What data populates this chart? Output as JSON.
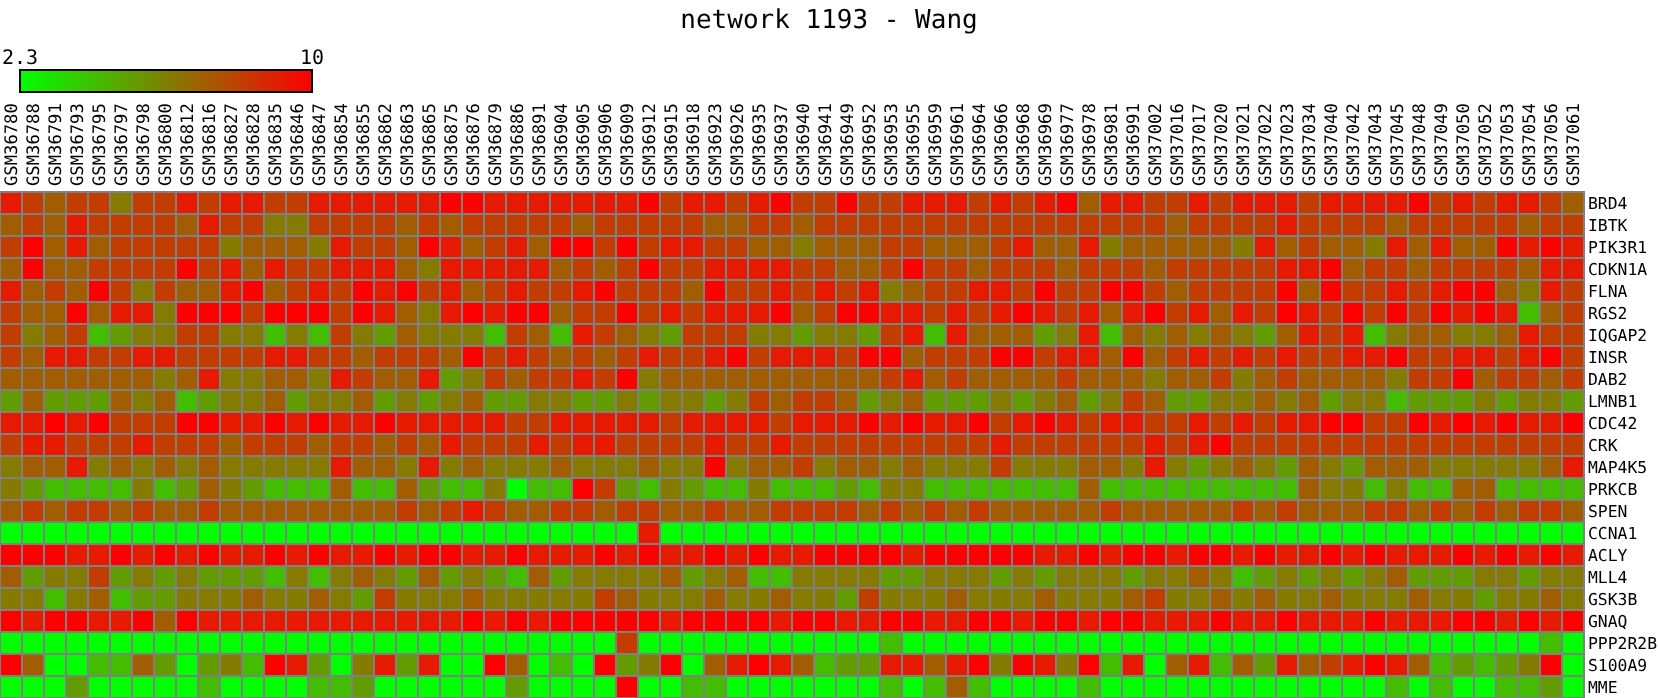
{
  "chart_data": {
    "type": "heatmap",
    "title": "network 1193 - Wang",
    "categories": [
      "GSM36780",
      "GSM36788",
      "GSM36791",
      "GSM36793",
      "GSM36795",
      "GSM36797",
      "GSM36798",
      "GSM36800",
      "GSM36812",
      "GSM36816",
      "GSM36827",
      "GSM36828",
      "GSM36835",
      "GSM36846",
      "GSM36847",
      "GSM36854",
      "GSM36855",
      "GSM36862",
      "GSM36863",
      "GSM36865",
      "GSM36875",
      "GSM36876",
      "GSM36879",
      "GSM36886",
      "GSM36891",
      "GSM36904",
      "GSM36905",
      "GSM36906",
      "GSM36909",
      "GSM36912",
      "GSM36915",
      "GSM36918",
      "GSM36923",
      "GSM36926",
      "GSM36935",
      "GSM36937",
      "GSM36940",
      "GSM36941",
      "GSM36949",
      "GSM36952",
      "GSM36953",
      "GSM36955",
      "GSM36959",
      "GSM36961",
      "GSM36964",
      "GSM36966",
      "GSM36968",
      "GSM36969",
      "GSM36977",
      "GSM36978",
      "GSM36981",
      "GSM36991",
      "GSM37002",
      "GSM37016",
      "GSM37017",
      "GSM37020",
      "GSM37021",
      "GSM37022",
      "GSM37023",
      "GSM37034",
      "GSM37040",
      "GSM37042",
      "GSM37043",
      "GSM37045",
      "GSM37048",
      "GSM37049",
      "GSM37050",
      "GSM37052",
      "GSM37053",
      "GSM37054",
      "GSM37056",
      "GSM37061"
    ],
    "y_categories": [
      "BRD4",
      "IBTK",
      "PIK3R1",
      "CDKN1A",
      "FLNA",
      "RGS2",
      "IQGAP2",
      "INSR",
      "DAB2",
      "LMNB1",
      "CDC42",
      "CRK",
      "MAP4K5",
      "PRKCB",
      "SPEN",
      "CCNA1",
      "ACLY",
      "MLL4",
      "GSK3B",
      "GNAQ",
      "PPP2R2B",
      "S100A9",
      "MME"
    ],
    "clim": [
      2.3,
      10
    ],
    "cticks": [
      2.3,
      10
    ],
    "cells": [
      [
        9.2,
        8.2,
        7.2,
        8.2,
        8.2,
        6.3,
        8.2,
        8.2,
        9.2,
        8.2,
        9.2,
        9.2,
        8.2,
        8.2,
        9.2,
        9.2,
        9.2,
        9.2,
        9.2,
        9.2,
        10,
        10,
        9.2,
        9.2,
        9.2,
        9.2,
        9.2,
        9.2,
        9.2,
        10,
        8.2,
        9.2,
        9.2,
        8.2,
        9.2,
        10,
        8.2,
        8.2,
        10,
        8.2,
        8.2,
        9.2,
        9.2,
        9.2,
        8.2,
        9.2,
        8.2,
        9.2,
        10,
        7.2,
        9.2,
        9.2,
        8.2,
        8.2,
        9.2,
        8.2,
        9.2,
        9.2,
        9.2,
        8.2,
        9.2,
        9.2,
        9.2,
        9.2,
        10,
        8.2,
        9.2,
        8.2,
        9.2,
        9.2,
        8.2,
        7.2
      ],
      [
        7.2,
        8.2,
        7.2,
        9.2,
        8.2,
        8.2,
        8.2,
        8.2,
        7.2,
        9.2,
        8.2,
        8.2,
        6.3,
        6.3,
        8.2,
        8.2,
        8.2,
        8.2,
        7.2,
        8.2,
        7.2,
        8.2,
        8.2,
        8.2,
        8.2,
        8.2,
        7.2,
        8.2,
        8.2,
        8.2,
        8.2,
        8.2,
        7.2,
        7.2,
        8.2,
        8.2,
        7.2,
        8.2,
        8.2,
        8.2,
        8.2,
        8.2,
        8.2,
        8.2,
        8.2,
        8.2,
        8.2,
        8.2,
        8.2,
        8.2,
        8.2,
        8.2,
        8.2,
        7.2,
        8.2,
        8.2,
        8.2,
        8.2,
        9.2,
        8.2,
        8.2,
        8.2,
        8.2,
        7.2,
        8.2,
        8.2,
        8.2,
        8.2,
        8.2,
        7.2,
        8.2,
        8.2
      ],
      [
        8.2,
        10,
        7.2,
        9.2,
        7.2,
        8.2,
        8.2,
        8.2,
        8.2,
        8.2,
        6.3,
        7.2,
        7.2,
        7.2,
        6.3,
        9.2,
        8.2,
        8.2,
        7.2,
        10,
        9.2,
        7.2,
        8.2,
        9.2,
        7.2,
        10,
        10,
        8.2,
        10,
        8.2,
        9.2,
        9.2,
        8.2,
        8.2,
        7.2,
        7.2,
        6.3,
        7.2,
        7.2,
        7.2,
        8.2,
        8.2,
        7.2,
        7.2,
        7.2,
        8.2,
        9.2,
        7.2,
        7.2,
        9.2,
        6.3,
        7.2,
        7.2,
        7.2,
        7.2,
        7.2,
        6.3,
        9.2,
        7.2,
        8.2,
        7.2,
        7.2,
        6.3,
        9.2,
        7.2,
        9.2,
        7.2,
        7.2,
        10,
        9.2,
        10,
        9.2
      ],
      [
        7.2,
        10,
        7.2,
        7.2,
        8.2,
        8.2,
        8.2,
        8.2,
        10,
        8.2,
        9.2,
        7.2,
        9.2,
        8.2,
        8.2,
        9.2,
        9.2,
        9.2,
        7.2,
        6.3,
        9.2,
        9.2,
        9.2,
        9.2,
        9.2,
        7.2,
        8.2,
        7.2,
        8.2,
        10,
        8.2,
        8.2,
        9.2,
        9.2,
        9.2,
        9.2,
        8.2,
        8.2,
        7.2,
        7.2,
        8.2,
        10,
        8.2,
        8.2,
        7.2,
        8.2,
        8.2,
        8.2,
        7.2,
        8.2,
        8.2,
        8.2,
        7.2,
        8.2,
        8.2,
        8.2,
        8.2,
        8.2,
        9.2,
        9.2,
        10,
        7.2,
        8.2,
        8.2,
        7.2,
        8.2,
        8.2,
        8.2,
        8.2,
        7.2,
        9.2,
        9.2
      ],
      [
        9.2,
        7.2,
        8.2,
        7.2,
        10,
        8.2,
        6.3,
        8.2,
        7.2,
        7.2,
        9.2,
        10,
        7.2,
        8.2,
        9.2,
        8.2,
        10,
        9.2,
        10,
        8.2,
        9.2,
        7.2,
        8.2,
        9.2,
        8.2,
        8.2,
        9.2,
        10,
        8.2,
        8.2,
        8.2,
        7.2,
        10,
        8.2,
        8.2,
        9.2,
        8.2,
        9.2,
        8.2,
        9.2,
        6.3,
        7.2,
        8.2,
        8.2,
        9.2,
        9.2,
        8.2,
        10,
        8.2,
        8.2,
        10,
        10,
        8.2,
        7.2,
        8.2,
        8.2,
        8.2,
        8.2,
        10,
        7.2,
        10,
        8.2,
        8.2,
        9.2,
        8.2,
        9.2,
        10,
        10,
        7.2,
        6.3,
        9.2,
        8.2
      ],
      [
        8.2,
        7.2,
        7.2,
        10,
        7.2,
        9.2,
        9.2,
        6.3,
        10,
        10,
        10,
        8.2,
        10,
        10,
        10,
        8.2,
        10,
        9.2,
        7.2,
        6.3,
        9.2,
        10,
        9.2,
        10,
        10,
        7.2,
        8.2,
        8.2,
        10,
        8.2,
        9.2,
        8.2,
        9.2,
        9.2,
        9.2,
        10,
        7.2,
        8.2,
        10,
        10,
        9.2,
        9.2,
        8.2,
        9.2,
        8.2,
        9.2,
        10,
        9.2,
        8.2,
        9.2,
        7.2,
        9.2,
        10,
        8.2,
        9.2,
        7.2,
        9.2,
        8.2,
        10,
        9.2,
        8.2,
        10,
        8.2,
        10,
        8.2,
        10,
        9.2,
        10,
        9.2,
        4.3,
        7.2,
        8.2
      ],
      [
        8.2,
        6.3,
        7.2,
        8.2,
        4.3,
        5.3,
        6.3,
        6.3,
        8.2,
        8.2,
        6.3,
        6.3,
        4.3,
        6.3,
        4.3,
        8.2,
        6.3,
        5.3,
        7.2,
        6.3,
        6.3,
        6.3,
        4.3,
        8.2,
        7.2,
        4.3,
        9.2,
        8.2,
        7.2,
        6.3,
        5.3,
        8.2,
        8.2,
        8.2,
        6.3,
        6.3,
        5.3,
        6.3,
        6.3,
        5.3,
        8.2,
        9.2,
        4.3,
        9.2,
        7.2,
        7.2,
        7.2,
        5.3,
        6.3,
        9.2,
        4.3,
        7.2,
        6.3,
        7.2,
        6.3,
        7.2,
        6.3,
        5.3,
        7.2,
        9.2,
        8.2,
        9.2,
        4.3,
        6.3,
        7.2,
        7.2,
        6.3,
        6.3,
        7.2,
        9.2,
        8.2,
        8.2
      ],
      [
        8.2,
        7.2,
        9.2,
        9.2,
        8.2,
        8.2,
        9.2,
        9.2,
        8.2,
        8.2,
        8.2,
        8.2,
        9.2,
        9.2,
        8.2,
        8.2,
        7.2,
        8.2,
        8.2,
        8.2,
        7.2,
        10,
        8.2,
        9.2,
        8.2,
        7.2,
        8.2,
        7.2,
        8.2,
        9.2,
        8.2,
        8.2,
        9.2,
        10,
        8.2,
        9.2,
        9.2,
        9.2,
        8.2,
        10,
        10,
        7.2,
        8.2,
        8.2,
        8.2,
        10,
        10,
        8.2,
        9.2,
        9.2,
        7.2,
        10,
        7.2,
        8.2,
        9.2,
        8.2,
        9.2,
        8.2,
        9.2,
        8.2,
        8.2,
        9.2,
        9.2,
        10,
        8.2,
        8.2,
        9.2,
        9.2,
        8.2,
        9.2,
        10,
        8.2
      ],
      [
        7.2,
        7.2,
        7.2,
        7.2,
        7.2,
        7.2,
        7.2,
        6.3,
        7.2,
        9.2,
        6.3,
        6.3,
        7.2,
        7.2,
        6.3,
        9.2,
        8.2,
        7.2,
        7.2,
        9.2,
        5.3,
        6.3,
        8.2,
        7.2,
        8.2,
        8.2,
        9.2,
        8.2,
        10,
        6.3,
        7.2,
        7.2,
        7.2,
        7.2,
        7.2,
        7.2,
        7.2,
        7.2,
        7.2,
        7.2,
        8.2,
        9.2,
        7.2,
        8.2,
        7.2,
        7.2,
        7.2,
        7.2,
        8.2,
        7.2,
        7.2,
        7.2,
        6.3,
        7.2,
        7.2,
        8.2,
        6.3,
        7.2,
        8.2,
        7.2,
        7.2,
        7.2,
        7.2,
        6.3,
        8.2,
        8.2,
        10,
        7.2,
        8.2,
        8.2,
        7.2,
        8.2
      ],
      [
        5.3,
        7.2,
        5.3,
        5.3,
        5.3,
        7.2,
        6.3,
        7.2,
        4.3,
        5.3,
        6.3,
        6.3,
        7.2,
        5.3,
        6.3,
        6.3,
        7.2,
        5.3,
        6.3,
        5.3,
        6.3,
        7.2,
        5.3,
        5.3,
        6.3,
        6.3,
        5.3,
        5.3,
        6.3,
        5.3,
        6.3,
        6.3,
        5.3,
        6.3,
        8.2,
        7.2,
        8.2,
        8.2,
        7.2,
        5.3,
        6.3,
        7.2,
        5.3,
        5.3,
        5.3,
        6.3,
        5.3,
        6.3,
        7.2,
        5.3,
        6.3,
        8.2,
        7.2,
        5.3,
        5.3,
        6.3,
        6.3,
        7.2,
        6.3,
        7.2,
        5.3,
        6.3,
        6.3,
        4.3,
        5.3,
        5.3,
        5.3,
        6.3,
        5.3,
        6.3,
        6.3,
        5.3
      ],
      [
        9.2,
        9.2,
        10,
        9.2,
        10,
        8.2,
        8.2,
        8.2,
        10,
        10,
        9.2,
        9.2,
        10,
        9.2,
        10,
        9.2,
        9.2,
        10,
        9.2,
        9.2,
        9.2,
        9.2,
        9.2,
        8.2,
        8.2,
        9.2,
        9.2,
        9.2,
        9.2,
        9.2,
        8.2,
        9.2,
        9.2,
        9.2,
        9.2,
        8.2,
        9.2,
        9.2,
        9.2,
        10,
        9.2,
        10,
        9.2,
        9.2,
        10,
        8.2,
        9.2,
        10,
        9.2,
        8.2,
        9.2,
        9.2,
        8.2,
        8.2,
        9.2,
        8.2,
        9.2,
        8.2,
        9.2,
        9.2,
        10,
        10,
        8.2,
        8.2,
        10,
        9.2,
        10,
        9.2,
        10,
        9.2,
        9.2,
        10
      ],
      [
        8.2,
        9.2,
        9.2,
        8.2,
        8.2,
        8.2,
        9.2,
        8.2,
        8.2,
        8.2,
        7.2,
        8.2,
        8.2,
        8.2,
        7.2,
        8.2,
        8.2,
        7.2,
        8.2,
        7.2,
        9.2,
        8.2,
        8.2,
        8.2,
        9.2,
        8.2,
        9.2,
        9.2,
        8.2,
        8.2,
        8.2,
        8.2,
        9.2,
        8.2,
        8.2,
        9.2,
        8.2,
        8.2,
        8.2,
        8.2,
        8.2,
        8.2,
        8.2,
        8.2,
        8.2,
        9.2,
        8.2,
        8.2,
        8.2,
        8.2,
        8.2,
        8.2,
        9.2,
        8.2,
        9.2,
        10,
        8.2,
        8.2,
        8.2,
        8.2,
        8.2,
        8.2,
        8.2,
        8.2,
        8.2,
        8.2,
        8.2,
        8.2,
        8.2,
        8.2,
        8.2,
        8.2
      ],
      [
        6.3,
        7.2,
        7.2,
        9.2,
        6.3,
        7.2,
        6.3,
        7.2,
        6.3,
        7.2,
        6.3,
        6.3,
        6.3,
        6.3,
        6.3,
        9.2,
        7.2,
        7.2,
        6.3,
        9.2,
        6.3,
        7.2,
        6.3,
        6.3,
        6.3,
        7.2,
        6.3,
        6.3,
        6.3,
        7.2,
        6.3,
        6.3,
        10,
        6.3,
        7.2,
        7.2,
        8.2,
        6.3,
        7.2,
        7.2,
        6.3,
        7.2,
        6.3,
        6.3,
        6.3,
        8.2,
        6.3,
        6.3,
        6.3,
        7.2,
        7.2,
        6.3,
        9.2,
        6.3,
        5.3,
        6.3,
        7.2,
        6.3,
        5.3,
        7.2,
        6.3,
        5.3,
        7.2,
        7.2,
        7.2,
        6.3,
        6.3,
        6.3,
        6.3,
        6.3,
        7.2,
        9.2
      ],
      [
        6.3,
        5.3,
        4.3,
        4.3,
        4.3,
        4.3,
        6.3,
        4.3,
        5.3,
        7.2,
        6.3,
        5.3,
        4.3,
        4.3,
        4.3,
        7.2,
        4.3,
        4.3,
        7.2,
        5.3,
        4.3,
        4.3,
        6.3,
        2.3,
        4.3,
        4.3,
        10,
        8.2,
        5.3,
        4.3,
        6.3,
        5.3,
        4.3,
        4.3,
        6.3,
        4.3,
        4.3,
        4.3,
        5.3,
        4.3,
        6.3,
        6.3,
        4.3,
        4.3,
        4.3,
        4.3,
        4.3,
        4.3,
        4.3,
        7.2,
        4.3,
        4.3,
        4.3,
        4.3,
        4.3,
        4.3,
        4.3,
        4.3,
        4.3,
        7.2,
        6.3,
        6.3,
        4.3,
        6.3,
        4.3,
        4.3,
        7.2,
        7.2,
        4.3,
        4.3,
        4.3,
        4.3
      ],
      [
        7.2,
        8.2,
        7.2,
        8.2,
        8.2,
        7.2,
        8.2,
        7.2,
        7.2,
        8.2,
        7.2,
        7.2,
        7.2,
        7.2,
        7.2,
        7.2,
        7.2,
        7.2,
        8.2,
        7.2,
        8.2,
        9.2,
        8.2,
        7.2,
        7.2,
        8.2,
        8.2,
        7.2,
        8.2,
        8.2,
        7.2,
        7.2,
        8.2,
        7.2,
        7.2,
        8.2,
        8.2,
        8.2,
        8.2,
        7.2,
        8.2,
        7.2,
        8.2,
        7.2,
        8.2,
        7.2,
        7.2,
        7.2,
        7.2,
        7.2,
        8.2,
        7.2,
        7.2,
        7.2,
        7.2,
        7.2,
        8.2,
        7.2,
        8.2,
        7.2,
        7.2,
        7.2,
        8.2,
        8.2,
        7.2,
        8.2,
        7.2,
        8.2,
        7.2,
        8.2,
        8.2,
        7.2
      ],
      [
        2.3,
        2.3,
        2.3,
        2.3,
        2.3,
        2.3,
        2.3,
        2.3,
        2.3,
        2.3,
        2.3,
        2.3,
        2.3,
        2.3,
        2.3,
        2.3,
        2.3,
        2.3,
        2.3,
        2.3,
        2.3,
        2.3,
        2.3,
        2.3,
        2.3,
        2.3,
        2.3,
        2.3,
        2.3,
        9.2,
        2.3,
        2.3,
        2.3,
        2.3,
        2.3,
        2.3,
        2.3,
        2.3,
        2.3,
        2.3,
        2.3,
        2.3,
        2.3,
        2.3,
        2.3,
        2.3,
        2.3,
        2.3,
        2.3,
        2.3,
        2.3,
        2.3,
        2.3,
        2.3,
        2.3,
        2.3,
        2.3,
        2.3,
        2.3,
        2.3,
        2.3,
        2.3,
        2.3,
        2.3,
        2.3,
        2.3,
        2.3,
        2.3,
        2.3,
        2.3,
        2.3,
        2.3
      ],
      [
        10,
        10,
        10,
        9.2,
        9.2,
        10,
        9.2,
        10,
        9.2,
        10,
        9.2,
        9.2,
        10,
        9.2,
        10,
        9.2,
        9.2,
        10,
        9.2,
        10,
        10,
        9.2,
        9.2,
        10,
        9.2,
        9.2,
        9.2,
        10,
        9.2,
        10,
        9.2,
        9.2,
        10,
        9.2,
        10,
        9.2,
        9.2,
        10,
        10,
        10,
        10,
        9.2,
        10,
        10,
        10,
        10,
        10,
        9.2,
        9.2,
        10,
        9.2,
        10,
        10,
        9.2,
        10,
        10,
        9.2,
        10,
        9.2,
        9.2,
        10,
        9.2,
        10,
        9.2,
        9.2,
        9.2,
        10,
        9.2,
        10,
        9.2,
        10,
        9.2
      ],
      [
        7.2,
        5.3,
        6.3,
        6.3,
        8.2,
        5.3,
        6.3,
        5.3,
        6.3,
        5.3,
        5.3,
        5.3,
        4.3,
        6.3,
        4.3,
        6.3,
        7.2,
        6.3,
        5.3,
        7.2,
        5.3,
        6.3,
        5.3,
        4.3,
        7.2,
        5.3,
        6.3,
        6.3,
        6.3,
        6.3,
        7.2,
        5.3,
        6.3,
        7.2,
        4.3,
        4.3,
        6.3,
        6.3,
        6.3,
        6.3,
        5.3,
        5.3,
        6.3,
        6.3,
        6.3,
        5.3,
        6.3,
        5.3,
        6.3,
        6.3,
        6.3,
        5.3,
        6.3,
        6.3,
        7.2,
        6.3,
        4.3,
        5.3,
        6.3,
        5.3,
        6.3,
        5.3,
        6.3,
        7.2,
        5.3,
        5.3,
        5.3,
        6.3,
        6.3,
        5.3,
        6.3,
        6.3
      ],
      [
        6.3,
        6.3,
        4.3,
        6.3,
        7.2,
        4.3,
        5.3,
        5.3,
        6.3,
        6.3,
        6.3,
        7.2,
        6.3,
        6.3,
        7.2,
        6.3,
        5.3,
        8.2,
        6.3,
        6.3,
        6.3,
        7.2,
        6.3,
        6.3,
        6.3,
        6.3,
        6.3,
        8.2,
        7.2,
        6.3,
        6.3,
        6.3,
        7.2,
        6.3,
        6.3,
        7.2,
        6.3,
        6.3,
        5.3,
        8.2,
        6.3,
        6.3,
        6.3,
        7.2,
        6.3,
        6.3,
        6.3,
        7.2,
        6.3,
        6.3,
        6.3,
        7.2,
        8.2,
        6.3,
        6.3,
        7.2,
        6.3,
        7.2,
        6.3,
        6.3,
        7.2,
        6.3,
        6.3,
        6.3,
        7.2,
        6.3,
        6.3,
        5.3,
        6.3,
        6.3,
        7.2,
        6.3
      ],
      [
        10,
        9.2,
        10,
        10,
        9.2,
        9.2,
        10,
        7.2,
        10,
        9.2,
        9.2,
        9.2,
        9.2,
        9.2,
        9.2,
        9.2,
        9.2,
        9.2,
        9.2,
        9.2,
        9.2,
        10,
        9.2,
        10,
        9.2,
        10,
        10,
        10,
        10,
        10,
        9.2,
        10,
        10,
        10,
        10,
        9.2,
        10,
        10,
        9.2,
        9.2,
        10,
        10,
        9.2,
        9.2,
        10,
        10,
        9.2,
        10,
        10,
        9.2,
        10,
        10,
        9.2,
        9.2,
        9.2,
        10,
        9.2,
        9.2,
        10,
        9.2,
        9.2,
        9.2,
        10,
        9.2,
        9.2,
        9.2,
        10,
        10,
        9.2,
        10,
        9.2,
        10
      ],
      [
        2.3,
        2.3,
        2.3,
        2.3,
        2.3,
        2.3,
        2.3,
        2.3,
        2.3,
        2.3,
        2.3,
        2.3,
        2.3,
        2.3,
        2.3,
        2.3,
        2.3,
        2.3,
        2.3,
        2.3,
        2.3,
        2.3,
        2.3,
        2.3,
        2.3,
        2.3,
        2.3,
        2.3,
        8.2,
        2.3,
        2.3,
        2.3,
        2.3,
        2.3,
        2.3,
        2.3,
        2.3,
        2.3,
        2.3,
        2.3,
        4.3,
        2.3,
        2.3,
        2.3,
        2.3,
        2.3,
        2.3,
        2.3,
        2.3,
        2.3,
        2.3,
        2.3,
        2.3,
        2.3,
        2.3,
        2.3,
        2.3,
        2.3,
        2.3,
        2.3,
        2.3,
        2.3,
        2.3,
        2.3,
        2.3,
        2.3,
        2.3,
        2.3,
        2.3,
        2.3,
        4.3,
        2.3
      ],
      [
        10,
        7.2,
        2.3,
        2.3,
        4.3,
        4.3,
        7.2,
        5.3,
        2.3,
        5.3,
        6.3,
        4.3,
        10,
        9.2,
        5.3,
        2.3,
        6.3,
        9.2,
        5.3,
        9.2,
        2.3,
        2.3,
        10,
        7.2,
        2.3,
        4.3,
        2.3,
        10,
        5.3,
        6.3,
        10,
        2.3,
        7.2,
        9.2,
        10,
        9.2,
        7.2,
        4.3,
        5.3,
        5.3,
        9.2,
        9.2,
        7.2,
        9.2,
        10,
        6.3,
        10,
        9.2,
        6.3,
        10,
        4.3,
        9.2,
        2.3,
        7.2,
        9.2,
        4.3,
        7.2,
        5.3,
        9.2,
        7.2,
        8.2,
        9.2,
        10,
        9.2,
        7.2,
        4.3,
        5.3,
        4.3,
        5.3,
        6.3,
        10,
        2.3
      ],
      [
        2.3,
        2.3,
        2.3,
        5.3,
        2.3,
        2.3,
        2.3,
        2.3,
        2.3,
        4.3,
        2.3,
        2.3,
        2.3,
        2.3,
        4.3,
        4.3,
        5.3,
        2.3,
        2.3,
        2.3,
        2.3,
        2.3,
        2.3,
        5.3,
        2.3,
        2.3,
        2.3,
        2.3,
        10,
        2.3,
        2.3,
        4.3,
        4.3,
        2.3,
        2.3,
        2.3,
        2.3,
        2.3,
        2.3,
        2.3,
        4.3,
        2.3,
        4.3,
        7.2,
        4.3,
        2.3,
        2.3,
        2.3,
        2.3,
        4.3,
        2.3,
        2.3,
        2.3,
        2.3,
        2.3,
        2.3,
        2.3,
        2.3,
        2.3,
        2.3,
        2.3,
        2.3,
        2.3,
        4.3,
        2.3,
        4.3,
        2.3,
        2.3,
        4.3,
        4.3,
        5.3,
        2.3
      ]
    ]
  }
}
